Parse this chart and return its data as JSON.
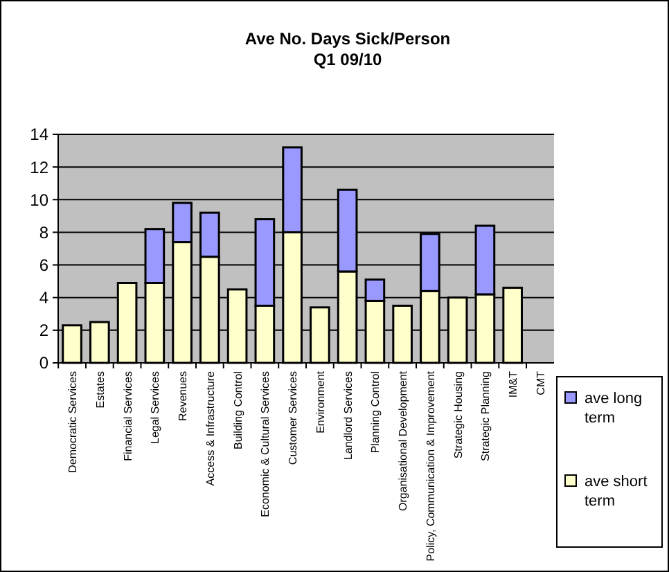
{
  "chart_data": {
    "type": "bar",
    "title": "Ave No. Days Sick/Person\nQ1 09/10",
    "categories": [
      "Democratic Services",
      "Estates",
      "Financial Services",
      "Legal Services",
      "Revenues",
      "Access & Infrastructure",
      "Building Control",
      "Economic & Cultural Services",
      "Customer Services",
      "Environment",
      "Landlord Services",
      "Planning Control",
      "Organisational Development",
      "Policy, Communication & Improvement",
      "Strategic Housing",
      "Strategic Planning",
      "IM&T",
      "CMT"
    ],
    "series": [
      {
        "name": "ave short term",
        "color": "#ffffcc",
        "values": [
          2.3,
          2.5,
          4.9,
          4.9,
          7.4,
          6.5,
          4.5,
          3.5,
          8.0,
          3.4,
          5.6,
          3.8,
          3.5,
          4.4,
          4.0,
          4.2,
          4.6,
          null
        ]
      },
      {
        "name": "ave long term",
        "color": "#9999ff",
        "values": [
          null,
          null,
          null,
          3.3,
          2.4,
          2.7,
          null,
          5.3,
          5.2,
          null,
          5.0,
          1.3,
          null,
          3.5,
          null,
          4.2,
          null,
          null
        ]
      }
    ],
    "stacked": true,
    "ylim": [
      0,
      14
    ],
    "yticks": [
      0,
      2,
      4,
      6,
      8,
      10,
      12,
      14
    ],
    "grid": "y",
    "legend": "right"
  }
}
